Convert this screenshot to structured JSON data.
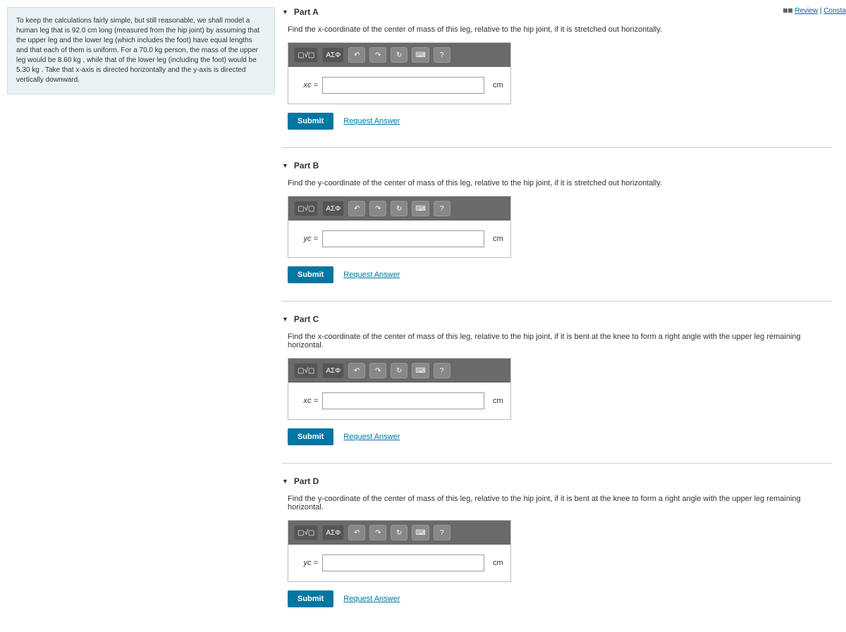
{
  "top": {
    "review": "Review",
    "constants": "Consta"
  },
  "problem": {
    "text": "To keep the calculations fairly simple, but still reasonable, we shall model a human leg that is 92.0 cm long (measured from the hip joint) by assuming that the upper leg and the lower leg (which includes the foot) have equal lengths and that each of them is uniform. For a 70.0 kg person, the mass of the upper leg would be 8.60 kg , while that of the lower leg (including the foot) would be 5.30 kg . Take that x-axis is directed horizontally and the y-axis is directed vertically downward."
  },
  "toolbar": {
    "templates": "▢√▢",
    "symbols": "ΑΣΦ",
    "undo": "↶",
    "redo": "↷",
    "reset": "↻",
    "keyboard": "⌨",
    "help": "?"
  },
  "buttons": {
    "submit": "Submit",
    "request": "Request Answer"
  },
  "parts": [
    {
      "label": "Part A",
      "prompt": "Find the x-coordinate of the center of mass of this leg, relative to the hip joint, if it is stretched out horizontally.",
      "var": "xc =",
      "unit": "cm",
      "value": ""
    },
    {
      "label": "Part B",
      "prompt": "Find the y-coordinate of the center of mass of this leg, relative to the hip joint, if it is stretched out horizontally.",
      "var": "yc =",
      "unit": "cm",
      "value": ""
    },
    {
      "label": "Part C",
      "prompt": "Find the x-coordinate of the center of mass of this leg, relative to the hip joint, if it is bent at the knee to form a right angle with the upper leg remaining horizontal.",
      "var": "xc =",
      "unit": "cm",
      "value": ""
    },
    {
      "label": "Part D",
      "prompt": "Find the y-coordinate of the center of mass of this leg, relative to the hip joint, if it is bent at the knee to form a right angle with the upper leg remaining horizontal.",
      "var": "yc =",
      "unit": "cm",
      "value": ""
    }
  ]
}
